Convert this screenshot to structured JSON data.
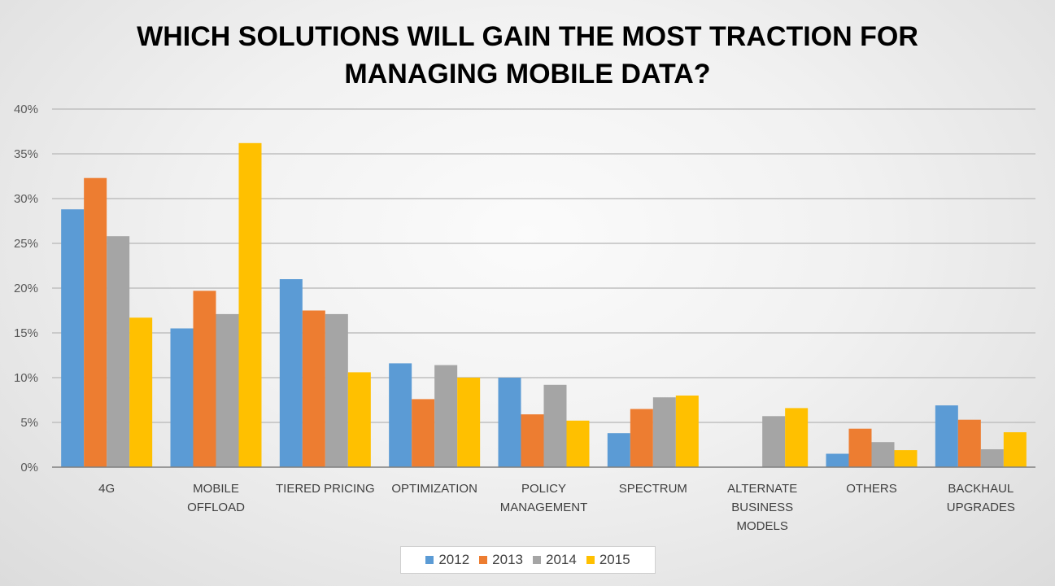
{
  "chart_data": {
    "type": "bar",
    "title_lines": [
      "WHICH SOLUTIONS WILL GAIN THE MOST TRACTION FOR",
      "MANAGING MOBILE DATA?"
    ],
    "categories": [
      [
        "4G"
      ],
      [
        "MOBILE",
        "OFFLOAD"
      ],
      [
        "TIERED PRICING"
      ],
      [
        "OPTIMIZATION"
      ],
      [
        "POLICY",
        "MANAGEMENT"
      ],
      [
        "SPECTRUM"
      ],
      [
        "ALTERNATE",
        "BUSINESS",
        "MODELS"
      ],
      [
        "OTHERS"
      ],
      [
        "BACKHAUL",
        "UPGRADES"
      ]
    ],
    "series": [
      {
        "name": "2012",
        "color": "#5b9bd5",
        "values": [
          28.8,
          15.5,
          21.0,
          11.6,
          10.0,
          3.8,
          0,
          1.5,
          6.9
        ]
      },
      {
        "name": "2013",
        "color": "#ed7d31",
        "values": [
          32.3,
          19.7,
          17.5,
          7.6,
          5.9,
          6.5,
          0,
          4.3,
          5.3
        ]
      },
      {
        "name": "2014",
        "color": "#a5a5a5",
        "values": [
          25.8,
          17.1,
          17.1,
          11.4,
          9.2,
          7.8,
          5.7,
          2.8,
          2.0
        ]
      },
      {
        "name": "2015",
        "color": "#ffc000",
        "values": [
          16.7,
          36.2,
          10.6,
          10.0,
          5.2,
          8.0,
          6.6,
          1.9,
          3.9
        ]
      }
    ],
    "ylim": [
      0,
      40
    ],
    "yticks": [
      "0%",
      "5%",
      "10%",
      "15%",
      "20%",
      "25%",
      "30%",
      "35%",
      "40%"
    ],
    "legend": "bottom",
    "grid": true
  }
}
